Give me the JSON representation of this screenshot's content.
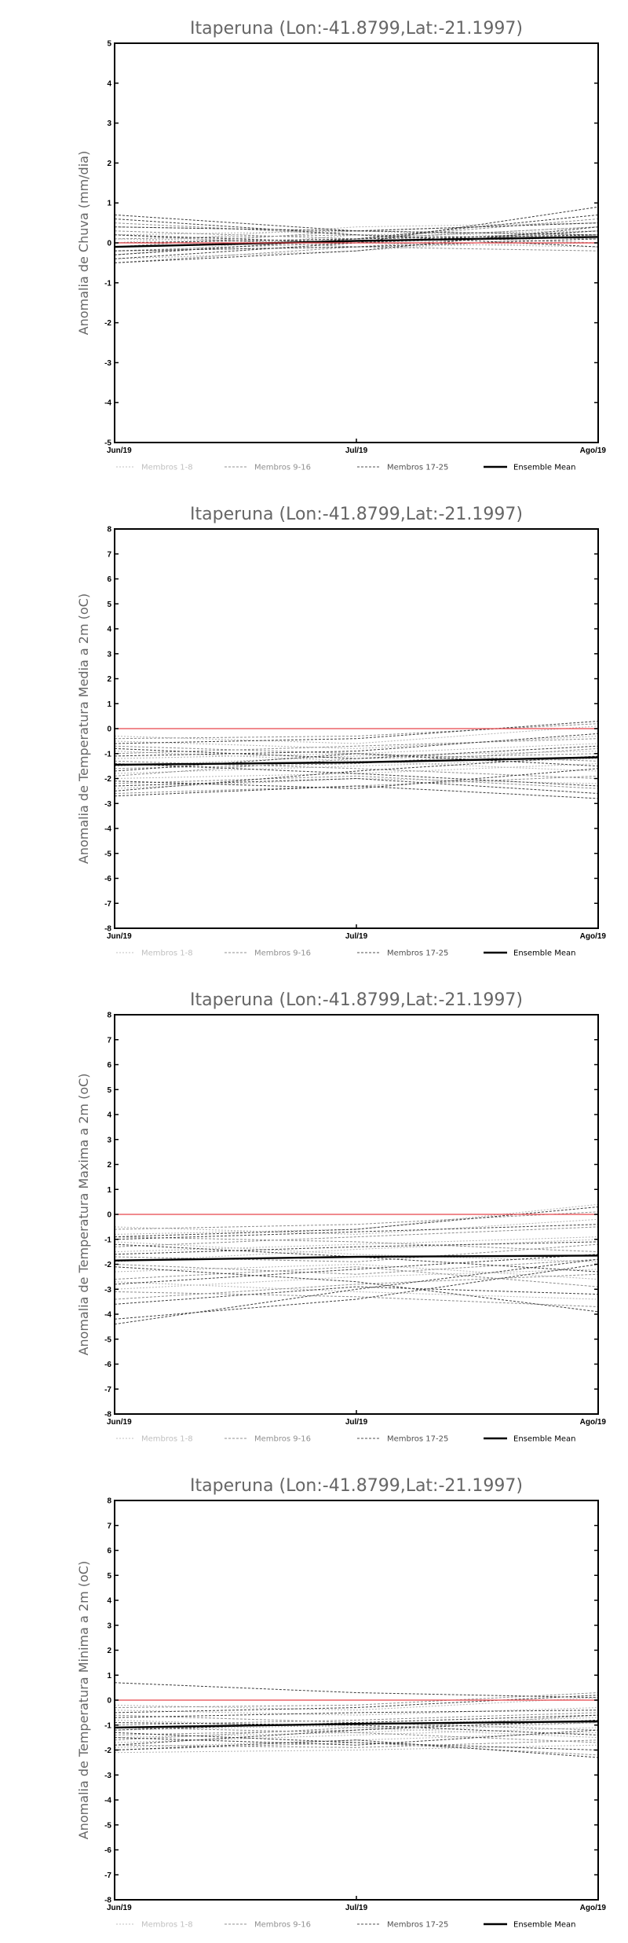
{
  "chart_data": [
    {
      "type": "line",
      "title": "Itaperuna (Lon:-41.8799,Lat:-21.1997)",
      "xlabel": "",
      "ylabel": "Anomalia de Chuva (mm/dia)",
      "categories": [
        "Jun/19",
        "Jul/19",
        "Ago/19"
      ],
      "ylim": [
        -5,
        5
      ],
      "yticks": [
        -5,
        -4,
        -3,
        -2,
        -1,
        0,
        1,
        2,
        3,
        4,
        5
      ],
      "grid": false,
      "legend_position": "bottom",
      "legend": [
        "Membros 1-8",
        "Membros 9-16",
        "Membros 17-25",
        "Ensemble Mean"
      ],
      "series": [
        {
          "group": 0,
          "values": [
            0.2,
            0.3,
            0.1
          ]
        },
        {
          "group": 0,
          "values": [
            -0.1,
            0.1,
            0.4
          ]
        },
        {
          "group": 0,
          "values": [
            0.1,
            0.0,
            -0.1
          ]
        },
        {
          "group": 0,
          "values": [
            -0.3,
            0.2,
            0.3
          ]
        },
        {
          "group": 0,
          "values": [
            0.4,
            0.3,
            0.2
          ]
        },
        {
          "group": 0,
          "values": [
            -0.2,
            -0.1,
            0.0
          ]
        },
        {
          "group": 0,
          "values": [
            0.0,
            0.4,
            0.5
          ]
        },
        {
          "group": 0,
          "values": [
            -0.4,
            -0.2,
            0.2
          ]
        },
        {
          "group": 1,
          "values": [
            0.5,
            0.2,
            0.1
          ]
        },
        {
          "group": 1,
          "values": [
            -0.5,
            -0.1,
            0.3
          ]
        },
        {
          "group": 1,
          "values": [
            0.3,
            0.1,
            0.6
          ]
        },
        {
          "group": 1,
          "values": [
            -0.2,
            0.0,
            0.2
          ]
        },
        {
          "group": 1,
          "values": [
            0.1,
            0.2,
            0.0
          ]
        },
        {
          "group": 1,
          "values": [
            -0.3,
            0.1,
            0.4
          ]
        },
        {
          "group": 1,
          "values": [
            0.2,
            -0.1,
            -0.2
          ]
        },
        {
          "group": 1,
          "values": [
            -0.1,
            0.3,
            0.5
          ]
        },
        {
          "group": 2,
          "values": [
            0.7,
            0.3,
            0.2
          ]
        },
        {
          "group": 2,
          "values": [
            -0.4,
            0.0,
            0.9
          ]
        },
        {
          "group": 2,
          "values": [
            0.6,
            0.2,
            -0.1
          ]
        },
        {
          "group": 2,
          "values": [
            -0.3,
            0.1,
            0.7
          ]
        },
        {
          "group": 2,
          "values": [
            0.2,
            0.0,
            0.3
          ]
        },
        {
          "group": 2,
          "values": [
            -0.2,
            -0.1,
            0.1
          ]
        },
        {
          "group": 2,
          "values": [
            0.4,
            0.3,
            0.5
          ]
        },
        {
          "group": 2,
          "values": [
            0.0,
            0.1,
            0.2
          ]
        },
        {
          "group": 2,
          "values": [
            -0.5,
            -0.2,
            0.4
          ]
        },
        {
          "group": 3,
          "values": [
            -0.1,
            0.05,
            0.15
          ]
        },
        {
          "group": 4,
          "values": [
            0.0,
            0.0,
            0.0
          ]
        }
      ]
    },
    {
      "type": "line",
      "title": "Itaperuna (Lon:-41.8799,Lat:-21.1997)",
      "xlabel": "",
      "ylabel": "Anomalia de Temperatura Media a 2m (oC)",
      "categories": [
        "Jun/19",
        "Jul/19",
        "Ago/19"
      ],
      "ylim": [
        -8,
        8
      ],
      "yticks": [
        -8,
        -7,
        -6,
        -5,
        -4,
        -3,
        -2,
        -1,
        0,
        1,
        2,
        3,
        4,
        5,
        6,
        7,
        8
      ],
      "grid": false,
      "legend_position": "bottom",
      "legend": [
        "Membros 1-8",
        "Membros 9-16",
        "Membros 17-25",
        "Ensemble Mean"
      ],
      "series": [
        {
          "group": 0,
          "values": [
            -0.5,
            -0.8,
            -0.3
          ]
        },
        {
          "group": 0,
          "values": [
            -1.2,
            -1.0,
            -0.6
          ]
        },
        {
          "group": 0,
          "values": [
            -2.0,
            -1.8,
            -1.4
          ]
        },
        {
          "group": 0,
          "values": [
            -0.9,
            -1.3,
            -1.7
          ]
        },
        {
          "group": 0,
          "values": [
            -1.5,
            -1.1,
            -0.9
          ]
        },
        {
          "group": 0,
          "values": [
            -2.4,
            -2.0,
            -2.2
          ]
        },
        {
          "group": 0,
          "values": [
            -0.3,
            -0.6,
            0.1
          ]
        },
        {
          "group": 0,
          "values": [
            -1.8,
            -1.5,
            -1.2
          ]
        },
        {
          "group": 1,
          "values": [
            -1.0,
            -0.7,
            -0.4
          ]
        },
        {
          "group": 1,
          "values": [
            -2.2,
            -1.9,
            -2.4
          ]
        },
        {
          "group": 1,
          "values": [
            -0.7,
            -1.0,
            -1.3
          ]
        },
        {
          "group": 1,
          "values": [
            -1.6,
            -1.4,
            -0.8
          ]
        },
        {
          "group": 1,
          "values": [
            -2.6,
            -2.3,
            -1.9
          ]
        },
        {
          "group": 1,
          "values": [
            -0.4,
            -0.3,
            0.2
          ]
        },
        {
          "group": 1,
          "values": [
            -1.3,
            -1.6,
            -2.0
          ]
        },
        {
          "group": 1,
          "values": [
            -1.9,
            -1.2,
            -1.0
          ]
        },
        {
          "group": 2,
          "values": [
            -2.7,
            -2.3,
            -2.8
          ]
        },
        {
          "group": 2,
          "values": [
            -0.6,
            -0.4,
            0.3
          ]
        },
        {
          "group": 2,
          "values": [
            -1.4,
            -1.8,
            -2.3
          ]
        },
        {
          "group": 2,
          "values": [
            -2.5,
            -1.7,
            -1.1
          ]
        },
        {
          "group": 2,
          "values": [
            -1.1,
            -0.9,
            -0.2
          ]
        },
        {
          "group": 2,
          "values": [
            -2.1,
            -2.4,
            -1.6
          ]
        },
        {
          "group": 2,
          "values": [
            -0.8,
            -1.2,
            -0.7
          ]
        },
        {
          "group": 2,
          "values": [
            -1.7,
            -1.0,
            -1.5
          ]
        },
        {
          "group": 2,
          "values": [
            -2.3,
            -2.0,
            -2.6
          ]
        },
        {
          "group": 3,
          "values": [
            -1.45,
            -1.35,
            -1.15
          ]
        },
        {
          "group": 4,
          "values": [
            0.0,
            0.0,
            0.0
          ]
        }
      ]
    },
    {
      "type": "line",
      "title": "Itaperuna (Lon:-41.8799,Lat:-21.1997)",
      "xlabel": "",
      "ylabel": "Anomalia de Temperatura Maxima a 2m (oC)",
      "categories": [
        "Jun/19",
        "Jul/19",
        "Ago/19"
      ],
      "ylim": [
        -8,
        8
      ],
      "yticks": [
        -8,
        -7,
        -6,
        -5,
        -4,
        -3,
        -2,
        -1,
        0,
        1,
        2,
        3,
        4,
        5,
        6,
        7,
        8
      ],
      "grid": false,
      "legend_position": "bottom",
      "legend": [
        "Membros 1-8",
        "Membros 9-16",
        "Membros 17-25",
        "Ensemble Mean"
      ],
      "series": [
        {
          "group": 0,
          "values": [
            -0.8,
            -0.6,
            0.4
          ]
        },
        {
          "group": 0,
          "values": [
            -1.5,
            -1.2,
            -0.9
          ]
        },
        {
          "group": 0,
          "values": [
            -2.3,
            -2.0,
            -2.6
          ]
        },
        {
          "group": 0,
          "values": [
            -3.0,
            -2.5,
            -2.2
          ]
        },
        {
          "group": 0,
          "values": [
            -1.1,
            -1.6,
            -1.9
          ]
        },
        {
          "group": 0,
          "values": [
            -2.7,
            -3.1,
            -3.4
          ]
        },
        {
          "group": 0,
          "values": [
            -0.5,
            -0.8,
            -0.2
          ]
        },
        {
          "group": 0,
          "values": [
            -1.9,
            -1.4,
            -1.0
          ]
        },
        {
          "group": 1,
          "values": [
            -1.3,
            -0.9,
            -0.5
          ]
        },
        {
          "group": 1,
          "values": [
            -3.4,
            -2.8,
            -2.4
          ]
        },
        {
          "group": 1,
          "values": [
            -2.0,
            -2.4,
            -1.8
          ]
        },
        {
          "group": 1,
          "values": [
            -0.9,
            -1.1,
            -1.5
          ]
        },
        {
          "group": 1,
          "values": [
            -2.6,
            -2.1,
            -2.9
          ]
        },
        {
          "group": 1,
          "values": [
            -1.7,
            -1.9,
            -1.2
          ]
        },
        {
          "group": 1,
          "values": [
            -3.1,
            -3.3,
            -3.7
          ]
        },
        {
          "group": 1,
          "values": [
            -0.6,
            -0.4,
            0.1
          ]
        },
        {
          "group": 2,
          "values": [
            -4.4,
            -3.0,
            -1.8
          ]
        },
        {
          "group": 2,
          "values": [
            -4.2,
            -3.4,
            -2.0
          ]
        },
        {
          "group": 2,
          "values": [
            -1.2,
            -1.7,
            -2.3
          ]
        },
        {
          "group": 2,
          "values": [
            -2.1,
            -2.7,
            -3.9
          ]
        },
        {
          "group": 2,
          "values": [
            -1.0,
            -0.7,
            -0.4
          ]
        },
        {
          "group": 2,
          "values": [
            -3.6,
            -2.9,
            -3.2
          ]
        },
        {
          "group": 2,
          "values": [
            -1.6,
            -1.3,
            -1.1
          ]
        },
        {
          "group": 2,
          "values": [
            -2.8,
            -2.2,
            -1.6
          ]
        },
        {
          "group": 2,
          "values": [
            -0.9,
            -0.6,
            0.3
          ]
        },
        {
          "group": 3,
          "values": [
            -1.85,
            -1.7,
            -1.65
          ]
        },
        {
          "group": 4,
          "values": [
            0.0,
            0.0,
            0.0
          ]
        }
      ]
    },
    {
      "type": "line",
      "title": "Itaperuna (Lon:-41.8799,Lat:-21.1997)",
      "xlabel": "",
      "ylabel": "Anomalia de Temperatura Minima a 2m (oC)",
      "categories": [
        "Jun/19",
        "Jul/19",
        "Ago/19"
      ],
      "ylim": [
        -8,
        8
      ],
      "yticks": [
        -8,
        -7,
        -6,
        -5,
        -4,
        -3,
        -2,
        -1,
        0,
        1,
        2,
        3,
        4,
        5,
        6,
        7,
        8
      ],
      "grid": false,
      "legend_position": "bottom",
      "legend": [
        "Membros 1-8",
        "Membros 9-16",
        "Membros 17-25",
        "Ensemble Mean"
      ],
      "series": [
        {
          "group": 0,
          "values": [
            -0.4,
            -0.6,
            -0.3
          ]
        },
        {
          "group": 0,
          "values": [
            -1.2,
            -1.0,
            -0.7
          ]
        },
        {
          "group": 0,
          "values": [
            -1.9,
            -1.6,
            -1.3
          ]
        },
        {
          "group": 0,
          "values": [
            -0.8,
            -1.1,
            -1.5
          ]
        },
        {
          "group": 0,
          "values": [
            -1.5,
            -1.3,
            -0.9
          ]
        },
        {
          "group": 0,
          "values": [
            -2.1,
            -2.0,
            -1.8
          ]
        },
        {
          "group": 0,
          "values": [
            -0.2,
            -0.4,
            0.1
          ]
        },
        {
          "group": 0,
          "values": [
            -1.7,
            -1.4,
            -1.1
          ]
        },
        {
          "group": 1,
          "values": [
            -1.0,
            -0.8,
            -0.5
          ]
        },
        {
          "group": 1,
          "values": [
            -2.0,
            -1.7,
            -2.2
          ]
        },
        {
          "group": 1,
          "values": [
            -0.6,
            -0.9,
            -1.2
          ]
        },
        {
          "group": 1,
          "values": [
            -1.4,
            -1.2,
            -0.6
          ]
        },
        {
          "group": 1,
          "values": [
            -1.8,
            -1.9,
            -1.6
          ]
        },
        {
          "group": 1,
          "values": [
            -0.3,
            -0.2,
            0.3
          ]
        },
        {
          "group": 1,
          "values": [
            -1.1,
            -1.3,
            -1.7
          ]
        },
        {
          "group": 1,
          "values": [
            -1.6,
            -1.1,
            -0.9
          ]
        },
        {
          "group": 2,
          "values": [
            0.7,
            0.3,
            0.1
          ]
        },
        {
          "group": 2,
          "values": [
            -2.0,
            -1.6,
            -2.3
          ]
        },
        {
          "group": 2,
          "values": [
            -0.5,
            -0.3,
            0.2
          ]
        },
        {
          "group": 2,
          "values": [
            -1.3,
            -1.7,
            -2.0
          ]
        },
        {
          "group": 2,
          "values": [
            -1.8,
            -1.2,
            -0.8
          ]
        },
        {
          "group": 2,
          "values": [
            -0.9,
            -1.0,
            -1.4
          ]
        },
        {
          "group": 2,
          "values": [
            -1.5,
            -1.8,
            -1.2
          ]
        },
        {
          "group": 2,
          "values": [
            -0.7,
            -0.5,
            -0.4
          ]
        },
        {
          "group": 2,
          "values": [
            -1.2,
            -0.9,
            -0.6
          ]
        },
        {
          "group": 3,
          "values": [
            -1.1,
            -0.95,
            -0.85
          ]
        },
        {
          "group": 4,
          "values": [
            0.0,
            0.0,
            0.0
          ]
        }
      ]
    }
  ],
  "styles": {
    "groups": [
      {
        "color": "#b4b4b4",
        "dash": "2,2",
        "legend_color": "#c0c0c0"
      },
      {
        "color": "#8c8c8c",
        "dash": "3,2",
        "legend_color": "#909090"
      },
      {
        "color": "#3c3c3c",
        "dash": "3,2",
        "legend_color": "#505050"
      },
      {
        "color": "#000000",
        "dash": "",
        "legend_color": "#000000"
      },
      {
        "color": "#e8454a",
        "dash": "",
        "legend_color": ""
      }
    ]
  }
}
